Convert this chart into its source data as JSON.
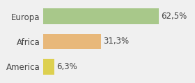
{
  "categories": [
    "Europa",
    "Africa",
    "America"
  ],
  "values": [
    62.5,
    31.3,
    6.3
  ],
  "labels": [
    "62,5%",
    "31,3%",
    "6,3%"
  ],
  "bar_colors": [
    "#a8c88a",
    "#e8b87a",
    "#ddd050"
  ],
  "background_color": "#f0f0f0",
  "xlim": [
    0,
    80
  ],
  "bar_height": 0.62,
  "label_fontsize": 8.5,
  "tick_fontsize": 8.5
}
